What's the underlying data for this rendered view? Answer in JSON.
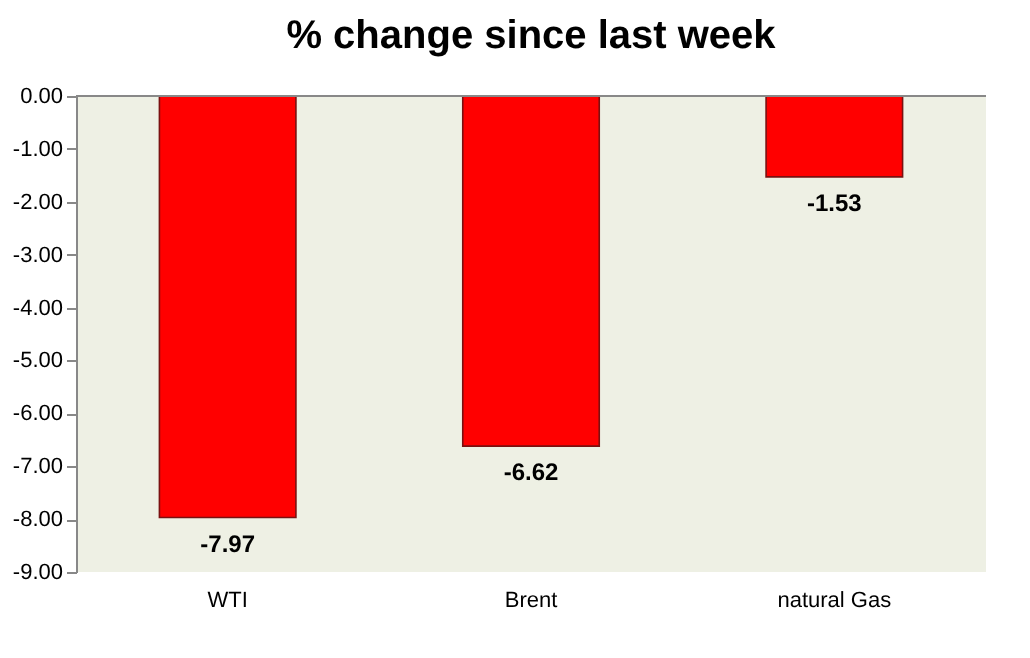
{
  "chart_data": {
    "type": "bar",
    "title": "% change since last week",
    "categories": [
      "WTI",
      "Brent",
      "natural Gas"
    ],
    "values": [
      -7.97,
      -6.62,
      -1.53
    ],
    "color": "#ff0000",
    "ylim": [
      -9,
      0
    ],
    "yticks": [
      {
        "value": 0,
        "label": "0.00"
      },
      {
        "value": -1,
        "label": "-1.00"
      },
      {
        "value": -2,
        "label": "-2.00"
      },
      {
        "value": -3,
        "label": "-3.00"
      },
      {
        "value": -4,
        "label": "-4.00"
      },
      {
        "value": -5,
        "label": "-5.00"
      },
      {
        "value": -6,
        "label": "-6.00"
      },
      {
        "value": -7,
        "label": "-7.00"
      },
      {
        "value": -8,
        "label": "-8.00"
      },
      {
        "value": -9,
        "label": "-9.00"
      }
    ],
    "data_labels": true,
    "grid": false
  }
}
